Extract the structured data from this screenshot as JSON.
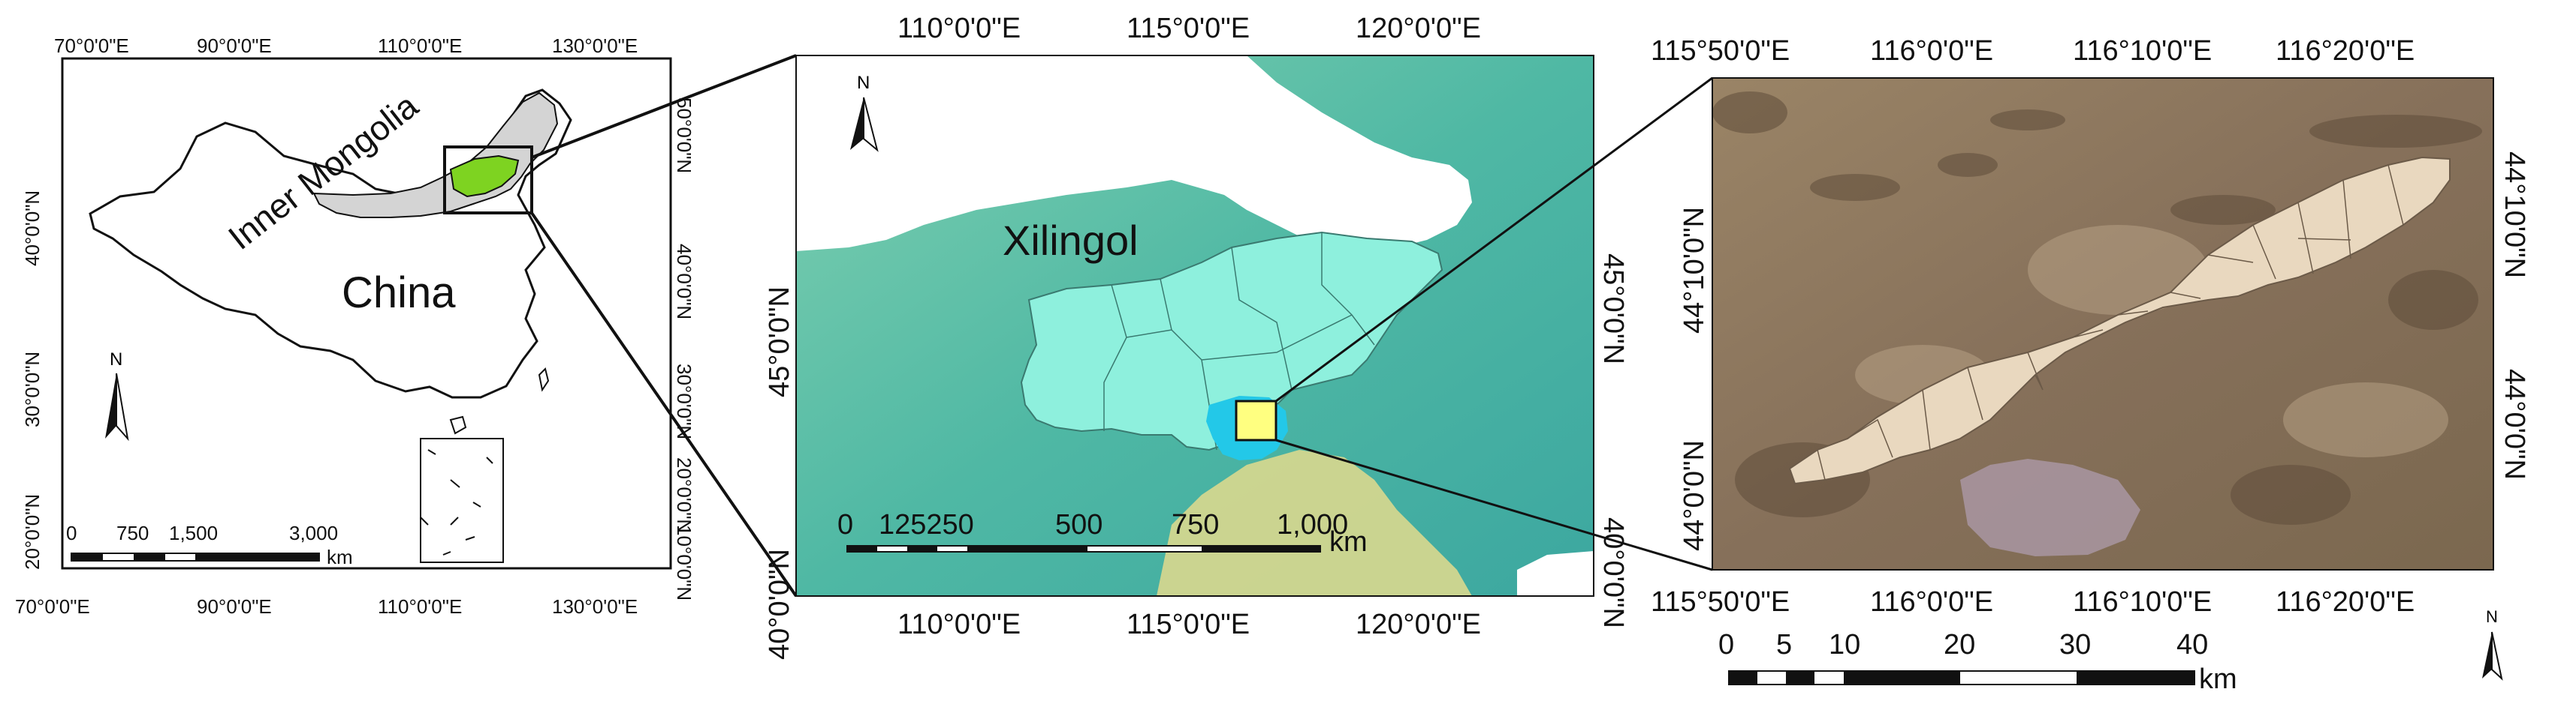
{
  "panel_a": {
    "top_ticks": [
      "70°0'0\"E",
      "90°0'0\"E",
      "110°0'0\"E",
      "130°0'0\"E"
    ],
    "bottom_ticks": [
      "70°0'0\"E",
      "90°0'0\"E",
      "110°0'0\"E",
      "130°0'0\"E"
    ],
    "left_ticks": [
      "40°0'0\"N",
      "30°0'0\"N",
      "20°0'0\"N"
    ],
    "right_ticks": [
      "50°0'0\"N",
      "40°0'0\"N",
      "30°0'0\"N",
      "20°0'0\"N",
      "10°0'0\"N"
    ],
    "label_region": "Inner Mongolia",
    "label_country": "China",
    "north": "N",
    "scale_labels": [
      "0",
      "750",
      "1,500",
      "3,000"
    ],
    "scale_unit": "km",
    "colors": {
      "inner_mongolia": "#d4d4d4",
      "study_area": "#7ed321",
      "outline": "#111111"
    }
  },
  "panel_b": {
    "top_ticks": [
      "110°0'0\"E",
      "115°0'0\"E",
      "120°0'0\"E"
    ],
    "bottom_ticks": [
      "110°0'0\"E",
      "115°0'0\"E",
      "120°0'0\"E"
    ],
    "left_ticks": [
      "45°0'0\"N",
      "40°0'0\"N"
    ],
    "right_ticks": [
      "45°0'0\"N",
      "40°0'0\"N"
    ],
    "label_region": "Xilingol",
    "north": "N",
    "scale_labels": [
      "0",
      "125250",
      "500",
      "750",
      "1,000"
    ],
    "scale_unit": "km",
    "colors": {
      "terrain": "#5fc4a8",
      "xilingol": "#8ef0dd",
      "highlight": "#ffff80",
      "study_halo": "#23c8e8"
    }
  },
  "panel_c": {
    "top_ticks": [
      "115°50'0\"E",
      "116°0'0\"E",
      "116°10'0\"E",
      "116°20'0\"E"
    ],
    "bottom_ticks": [
      "115°50'0\"E",
      "116°0'0\"E",
      "116°10'0\"E",
      "116°20'0\"E"
    ],
    "left_ticks": [
      "44°10'0\"N",
      "44°0'0\"N"
    ],
    "right_ticks": [
      "44°10'0\"N",
      "44°0'0\"N"
    ],
    "north": "N",
    "scale_labels": [
      "0",
      "5",
      "10",
      "20",
      "30",
      "40"
    ],
    "scale_unit": "km",
    "colors": {
      "mine_polygon": "#e9d8bf",
      "satellite": "#8a7259"
    }
  }
}
